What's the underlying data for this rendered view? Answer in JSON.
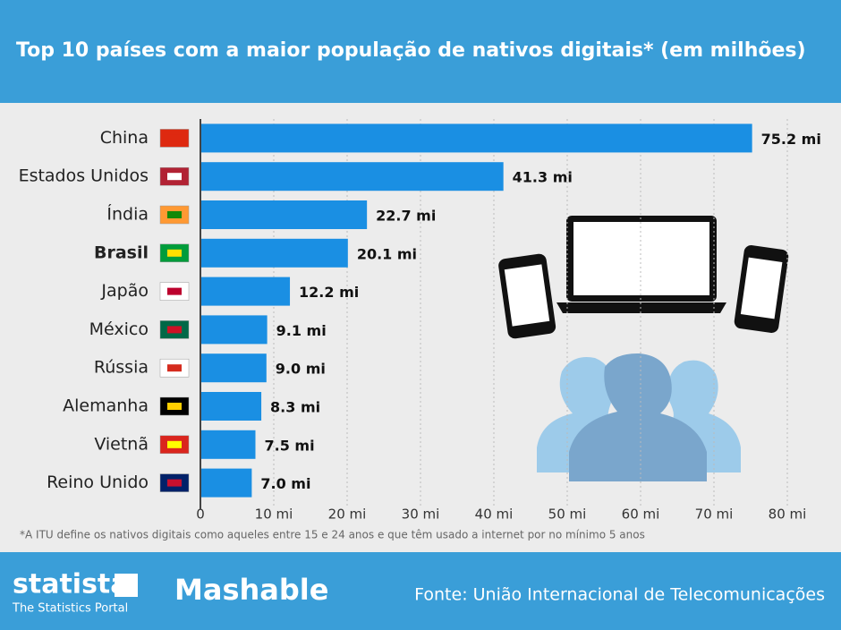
{
  "chart_data": {
    "type": "bar",
    "orientation": "horizontal",
    "title": "Top 10 países com a maior população de nativos digitais* (em milhões)",
    "categories": [
      "China",
      "Estados Unidos",
      "Índia",
      "Brasil",
      "Japão",
      "México",
      "Rússia",
      "Alemanha",
      "Vietnã",
      "Reino Unido"
    ],
    "values": [
      75.2,
      41.3,
      22.7,
      20.1,
      12.2,
      9.1,
      9.0,
      8.3,
      7.5,
      7.0
    ],
    "value_labels": [
      "75.2 mi",
      "41.3 mi",
      "22.7 mi",
      "20.1 mi",
      "12.2 mi",
      "9.1 mi",
      "9.0 mi",
      "8.3 mi",
      "7.5 mi",
      "7.0 mi"
    ],
    "highlight": "Brasil",
    "color": "#1a8fe3",
    "xlim": [
      0,
      80
    ],
    "xticks": [
      0,
      {
        "value": 10,
        "label": "10 mi"
      },
      {
        "value": 20,
        "label": "20 mi"
      },
      {
        "value": 30,
        "label": "30 mi"
      },
      {
        "value": 40,
        "label": "40 mi"
      },
      {
        "value": 50,
        "label": "50 mi"
      },
      {
        "value": 60,
        "label": "60 mi"
      },
      {
        "value": 70,
        "label": "70 mi"
      },
      {
        "value": 80,
        "label": "80 mi"
      }
    ],
    "grid": true,
    "footnote": "*A ITU define os nativos digitais como aqueles entre 15 e 24 anos e que têm usado a internet por no mínimo 5 anos",
    "brand": "statista",
    "brand_tagline": "The Statistics Portal",
    "partner": "Mashable",
    "source": "Fonte: União Internacional de Telecomunicações"
  }
}
